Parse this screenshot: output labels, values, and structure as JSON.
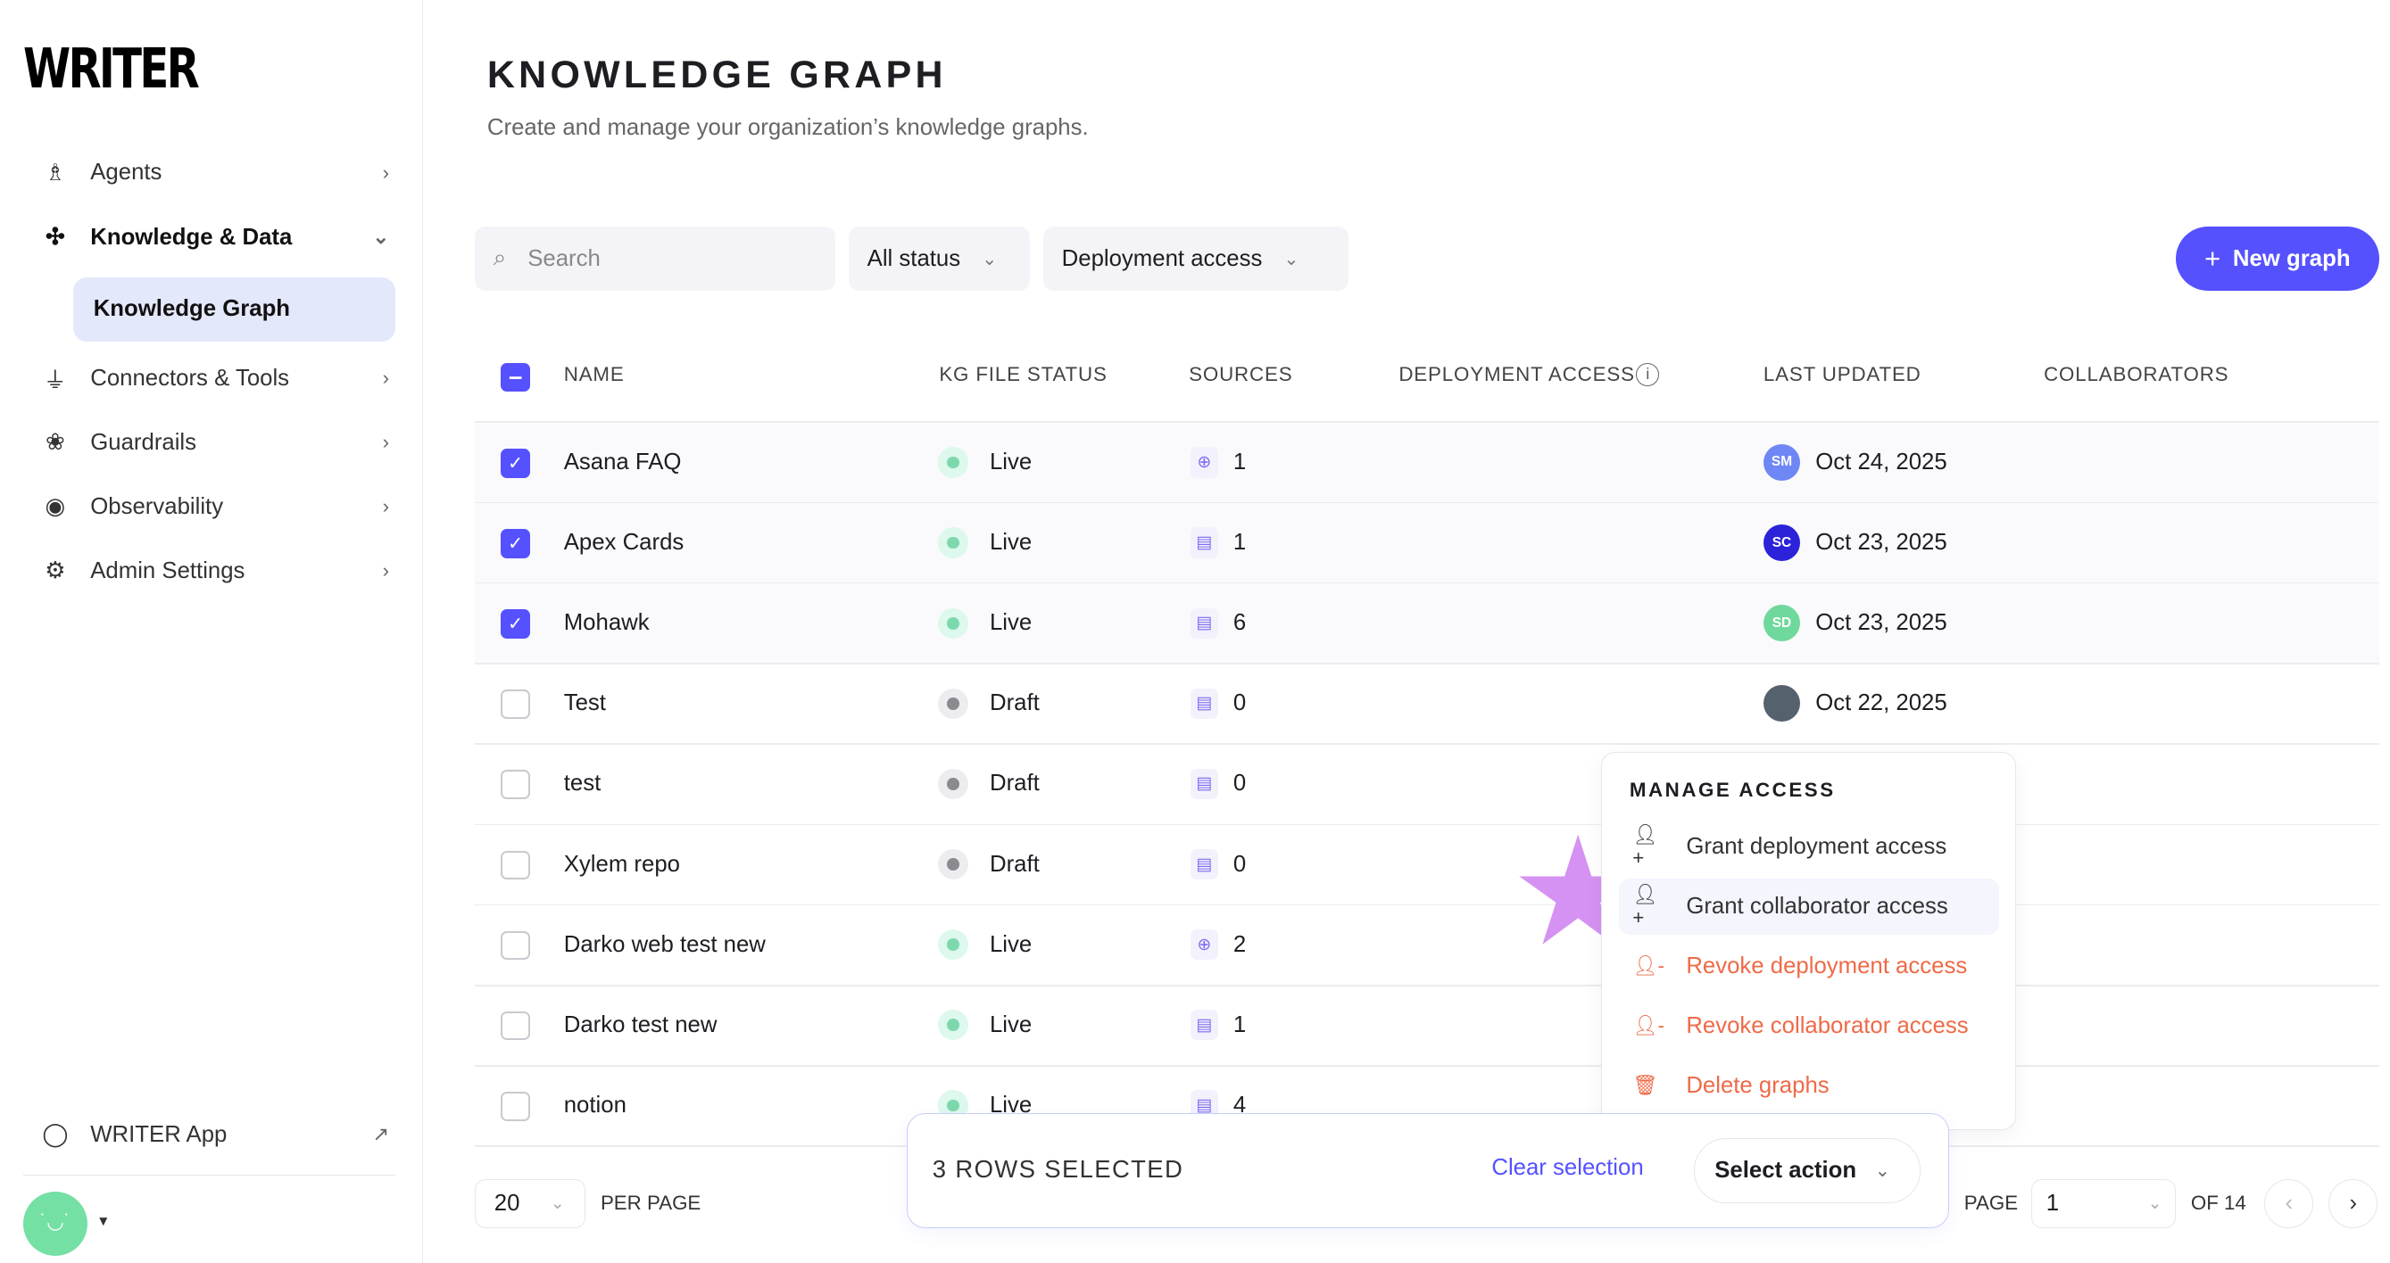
{
  "sidebar": {
    "logo": "WRITER",
    "items": [
      {
        "label": "Agents",
        "icon": "agent-icon"
      },
      {
        "label": "Knowledge & Data",
        "icon": "graph-nodes-icon"
      },
      {
        "label": "Connectors & Tools",
        "icon": "plug-icon"
      },
      {
        "label": "Guardrails",
        "icon": "brain-icon"
      },
      {
        "label": "Observability",
        "icon": "eye-icon"
      },
      {
        "label": "Admin Settings",
        "icon": "sliders-icon"
      }
    ],
    "sub_item": "Knowledge Graph",
    "writer_app": "WRITER App"
  },
  "header": {
    "title": "KNOWLEDGE GRAPH",
    "subtitle": "Create and manage your organization’s knowledge graphs."
  },
  "toolbar": {
    "search_placeholder": "Search",
    "status_filter": "All status",
    "access_filter": "Deployment access",
    "new_button": "New graph"
  },
  "table": {
    "columns": [
      "NAME",
      "KG FILE STATUS",
      "SOURCES",
      "DEPLOYMENT ACCESS",
      "LAST UPDATED",
      "COLLABORATORS"
    ],
    "rows": [
      {
        "name": "Asana FAQ",
        "status": "Live",
        "source_type": "web",
        "sources": "1",
        "avatar": "SM",
        "avatar_color": "#6f86f5",
        "updated": "Oct 24, 2025",
        "selected": true
      },
      {
        "name": "Apex Cards",
        "status": "Live",
        "source_type": "file",
        "sources": "1",
        "avatar": "SC",
        "avatar_color": "#2b22d9",
        "updated": "Oct 23, 2025",
        "selected": true
      },
      {
        "name": "Mohawk",
        "status": "Live",
        "source_type": "file",
        "sources": "6",
        "avatar": "SD",
        "avatar_color": "#6fd89c",
        "updated": "Oct 23, 2025",
        "selected": true
      },
      {
        "name": "Test",
        "status": "Draft",
        "source_type": "file",
        "sources": "0",
        "avatar": "",
        "avatar_color": "#56616e",
        "updated": "Oct 22, 2025",
        "selected": false
      },
      {
        "name": "test",
        "status": "Draft",
        "source_type": "file",
        "sources": "0",
        "selected": false
      },
      {
        "name": "Xylem repo",
        "status": "Draft",
        "source_type": "file",
        "sources": "0",
        "selected": false
      },
      {
        "name": "Darko web test new",
        "status": "Live",
        "source_type": "web",
        "sources": "2",
        "selected": false
      },
      {
        "name": "Darko test new",
        "status": "Live",
        "source_type": "file",
        "sources": "1",
        "selected": false
      },
      {
        "name": "notion",
        "status": "Live",
        "source_type": "file",
        "sources": "4",
        "selected": false
      }
    ]
  },
  "menu": {
    "title": "MANAGE ACCESS",
    "items": [
      "Grant deployment access",
      "Grant collaborator access",
      "Revoke deployment access",
      "Revoke collaborator access",
      "Delete graphs"
    ]
  },
  "selection": {
    "count_label": "3 ROWS SELECTED",
    "clear": "Clear selection",
    "action": "Select action"
  },
  "pagination": {
    "per_page": "20",
    "per_page_label": "PER PAGE",
    "page_label": "PAGE",
    "page": "1",
    "of": "OF 14"
  },
  "colors": {
    "accent": "#5551ff",
    "danger": "#ee6a48",
    "live": "#7dd8ad",
    "draft": "#8a8a90"
  }
}
